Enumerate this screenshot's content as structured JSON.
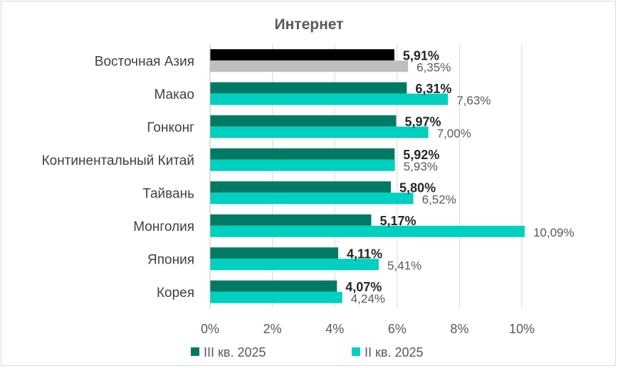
{
  "chart_data": {
    "type": "bar",
    "orientation": "horizontal",
    "title": "Интернет",
    "categories": [
      "Восточная Азия",
      "Макао",
      "Гонконг",
      "Континентальный Китай",
      "Тайвань",
      "Монголия",
      "Япония",
      "Корея"
    ],
    "series": [
      {
        "name": "III кв. 2025",
        "color": "#007a65",
        "values": [
          5.91,
          6.31,
          5.97,
          5.92,
          5.8,
          5.17,
          4.11,
          4.07
        ],
        "labels": [
          "5,91%",
          "6,31%",
          "5,97%",
          "5,92%",
          "5,80%",
          "5,17%",
          "4,11%",
          "4,07%"
        ]
      },
      {
        "name": "II кв. 2025",
        "color": "#00d0c0",
        "values": [
          6.35,
          7.63,
          7.0,
          5.93,
          6.52,
          10.09,
          5.41,
          4.24
        ],
        "labels": [
          "6,35%",
          "7,63%",
          "7,00%",
          "5,93%",
          "6,52%",
          "10,09%",
          "5,41%",
          "4,24%"
        ]
      }
    ],
    "highlight": {
      "category": "Восточная Азия",
      "series_colors": [
        "#000000",
        "#bfbfbf"
      ]
    },
    "xlim": [
      0,
      10
    ],
    "xticks": [
      "0%",
      "2%",
      "4%",
      "6%",
      "8%",
      "10%"
    ],
    "grid": true,
    "legend_position": "bottom"
  }
}
